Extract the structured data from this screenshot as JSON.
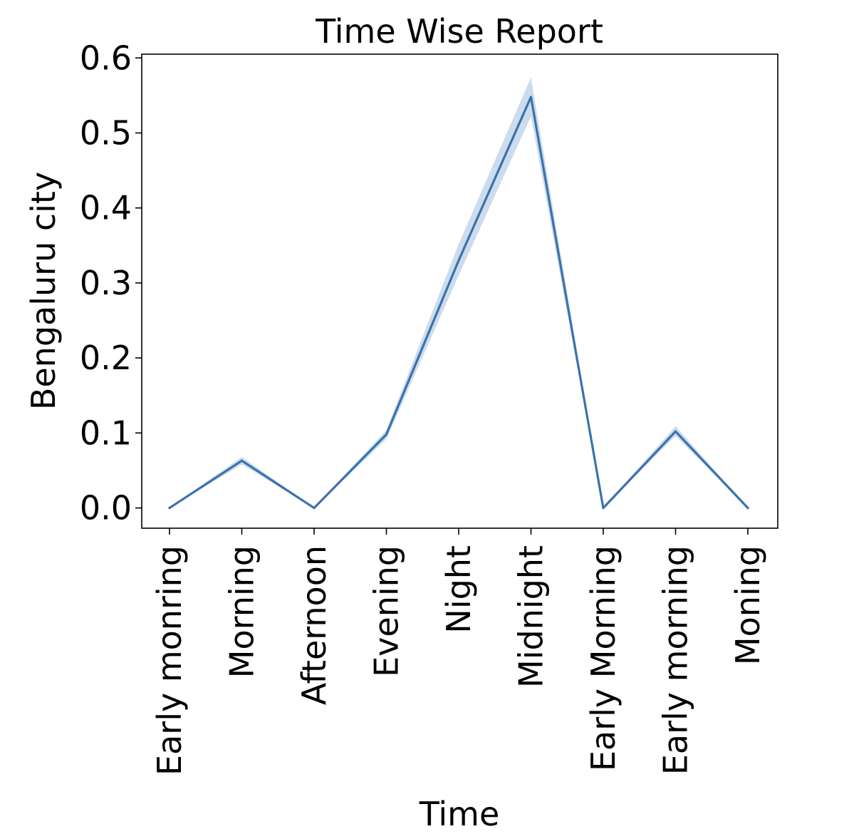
{
  "chart_data": {
    "type": "line",
    "title": "Time Wise Report",
    "xlabel": "Time",
    "ylabel": "Bengaluru city",
    "categories": [
      "Early monring",
      "Morning",
      "Afternoon",
      "Evening",
      "Night",
      "Midnight",
      "Early Morning",
      "Early morning",
      "Moning"
    ],
    "series": [
      {
        "values": [
          0.0,
          0.063,
          0.0,
          0.098,
          0.33,
          0.548,
          0.0,
          0.102,
          0.0
        ],
        "ci_lower": [
          0.0,
          0.058,
          0.0,
          0.092,
          0.31,
          0.522,
          0.0,
          0.096,
          0.0
        ],
        "ci_upper": [
          0.0,
          0.068,
          0.0,
          0.104,
          0.352,
          0.574,
          0.0,
          0.109,
          0.0
        ]
      }
    ],
    "ylim": [
      -0.027,
      0.605
    ],
    "yticks": [
      "0.0",
      "0.1",
      "0.2",
      "0.3",
      "0.4",
      "0.5",
      "0.6"
    ],
    "ytick_values": [
      0.0,
      0.1,
      0.2,
      0.3,
      0.4,
      0.5,
      0.6
    ],
    "grid": false,
    "colors": {
      "line": "#3a72ad",
      "band": "#bcd0e6"
    }
  }
}
